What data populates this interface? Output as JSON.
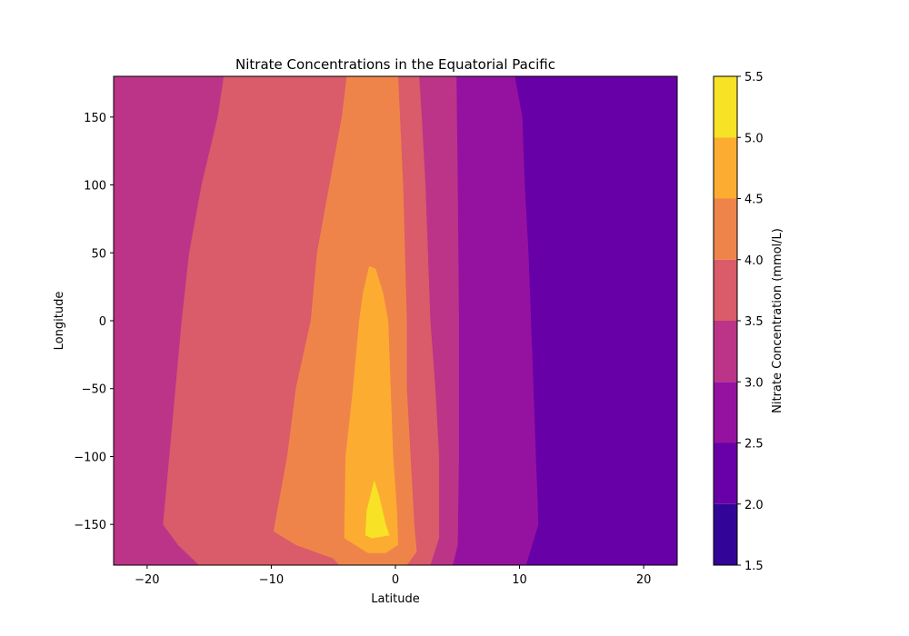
{
  "chart_data": {
    "type": "heatmap",
    "subtype": "filled-contour",
    "title": "Nitrate Concentrations in the Equatorial Pacific",
    "xlabel": "Latitude",
    "ylabel": "Longitude",
    "xlim": [
      -22.7,
      22.7
    ],
    "ylim": [
      -180,
      180
    ],
    "x_ticks": [
      -20,
      -10,
      0,
      10,
      20
    ],
    "y_ticks": [
      -150,
      -100,
      -50,
      0,
      50,
      100,
      150
    ],
    "x_tick_labels": [
      "−20",
      "−10",
      "0",
      "10",
      "20"
    ],
    "y_tick_labels": [
      "−150",
      "−100",
      "−50",
      "0",
      "50",
      "100",
      "150"
    ],
    "colormap": "plasma",
    "colorbar": {
      "label": "Nitrate Concentration (mmol/L)",
      "levels": [
        1.5,
        2.0,
        2.5,
        3.0,
        3.5,
        4.0,
        4.5,
        5.0,
        5.5
      ],
      "tick_labels": [
        "1.5",
        "2.0",
        "2.5",
        "3.0",
        "3.5",
        "4.0",
        "4.5",
        "5.0",
        "5.5"
      ],
      "colors": [
        "#330597",
        "#6800a8",
        "#9512a1",
        "#bb3488",
        "#da5b69",
        "#ef844b",
        "#fcad31",
        "#f7e225"
      ]
    },
    "grid": false,
    "legend": "none",
    "contour_bands": [
      {
        "level": "1.5-2.0",
        "polygons": [
          [
            [
              14.7,
              180
            ],
            [
              20.6,
              180
            ],
            [
              20.1,
              100
            ],
            [
              19.3,
              50
            ],
            [
              18.7,
              0
            ],
            [
              18.2,
              -10
            ],
            [
              17.6,
              -10
            ],
            [
              17.0,
              0
            ],
            [
              16.5,
              50
            ],
            [
              15.6,
              100
            ]
          ],
          [
            [
              15.2,
              -180
            ],
            [
              16.0,
              -172
            ],
            [
              18.0,
              -166
            ],
            [
              20.0,
              -166
            ],
            [
              21.5,
              -170
            ],
            [
              22.0,
              -180
            ]
          ]
        ]
      },
      {
        "level": "2.0-2.5",
        "polygons": [
          [
            [
              9.6,
              180
            ],
            [
              22.7,
              180
            ],
            [
              22.7,
              -180
            ],
            [
              10.5,
              -180
            ],
            [
              11.0,
              -165
            ],
            [
              11.5,
              -150
            ],
            [
              11.3,
              -100
            ],
            [
              11.1,
              -50
            ],
            [
              10.9,
              0
            ],
            [
              10.7,
              50
            ],
            [
              10.4,
              100
            ],
            [
              10.2,
              150
            ]
          ]
        ]
      },
      {
        "level": "2.5-3.0",
        "polygons": [
          [
            [
              4.9,
              180
            ],
            [
              9.6,
              180
            ],
            [
              10.2,
              150
            ],
            [
              10.4,
              100
            ],
            [
              10.7,
              50
            ],
            [
              10.9,
              0
            ],
            [
              11.1,
              -50
            ],
            [
              11.3,
              -100
            ],
            [
              11.5,
              -150
            ],
            [
              11.0,
              -165
            ],
            [
              10.5,
              -180
            ],
            [
              4.6,
              -180
            ],
            [
              5.0,
              -165
            ],
            [
              5.1,
              -100
            ],
            [
              5.1,
              0
            ],
            [
              5.0,
              100
            ]
          ]
        ]
      },
      {
        "level": "3.0-3.5",
        "polygons": [
          [
            [
              -22.7,
              180
            ],
            [
              -13.8,
              180
            ],
            [
              -14.3,
              150
            ],
            [
              -15.6,
              100
            ],
            [
              -16.6,
              50
            ],
            [
              -17.2,
              0
            ],
            [
              -17.7,
              -50
            ],
            [
              -18.2,
              -100
            ],
            [
              -18.7,
              -150
            ],
            [
              -17.5,
              -165
            ],
            [
              -15.8,
              -180
            ],
            [
              -22.7,
              -180
            ]
          ],
          [
            [
              1.9,
              180
            ],
            [
              4.9,
              180
            ],
            [
              5.0,
              100
            ],
            [
              5.1,
              0
            ],
            [
              5.1,
              -100
            ],
            [
              5.0,
              -165
            ],
            [
              4.6,
              -180
            ],
            [
              2.8,
              -180
            ],
            [
              3.5,
              -160
            ],
            [
              3.5,
              -100
            ],
            [
              3.2,
              -50
            ],
            [
              2.8,
              0
            ],
            [
              2.4,
              100
            ],
            [
              2.1,
              150
            ]
          ],
          [
            [
              -11.0,
              180
            ],
            [
              -8.8,
              180
            ],
            [
              -9.4,
              175
            ],
            [
              -10.5,
              175
            ]
          ]
        ]
      },
      {
        "level": "3.5-4.0",
        "polygons": [
          [
            [
              -13.8,
              180
            ],
            [
              -3.9,
              180
            ],
            [
              -4.3,
              150
            ],
            [
              -5.3,
              100
            ],
            [
              -6.3,
              50
            ],
            [
              -6.8,
              0
            ],
            [
              -8.0,
              -50
            ],
            [
              -8.7,
              -100
            ],
            [
              -9.8,
              -155
            ],
            [
              -8.0,
              -165
            ],
            [
              -5.0,
              -175
            ],
            [
              -4.5,
              -180
            ],
            [
              -15.8,
              -180
            ],
            [
              -17.5,
              -165
            ],
            [
              -18.7,
              -150
            ],
            [
              -18.2,
              -100
            ],
            [
              -17.7,
              -50
            ],
            [
              -17.2,
              0
            ],
            [
              -16.6,
              50
            ],
            [
              -15.6,
              100
            ],
            [
              -14.3,
              150
            ]
          ],
          [
            [
              0.2,
              180
            ],
            [
              1.9,
              180
            ],
            [
              2.1,
              150
            ],
            [
              2.4,
              100
            ],
            [
              2.8,
              0
            ],
            [
              3.2,
              -50
            ],
            [
              3.5,
              -100
            ],
            [
              3.5,
              -160
            ],
            [
              2.8,
              -180
            ],
            [
              0.9,
              -180
            ],
            [
              1.7,
              -170
            ],
            [
              1.5,
              -150
            ],
            [
              1.2,
              -100
            ],
            [
              0.9,
              -50
            ],
            [
              0.9,
              0
            ],
            [
              0.6,
              100
            ]
          ]
        ]
      },
      {
        "level": "4.0-4.5",
        "polygons": [
          [
            [
              -3.9,
              180
            ],
            [
              0.2,
              180
            ],
            [
              0.6,
              100
            ],
            [
              0.9,
              0
            ],
            [
              0.9,
              -50
            ],
            [
              1.2,
              -100
            ],
            [
              1.5,
              -150
            ],
            [
              1.7,
              -170
            ],
            [
              0.9,
              -180
            ],
            [
              -4.5,
              -180
            ],
            [
              -5.0,
              -175
            ],
            [
              -8.0,
              -165
            ],
            [
              -9.8,
              -155
            ],
            [
              -8.7,
              -100
            ],
            [
              -8.0,
              -50
            ],
            [
              -6.8,
              0
            ],
            [
              -6.3,
              50
            ],
            [
              -5.3,
              100
            ],
            [
              -4.3,
              150
            ]
          ]
        ]
      },
      {
        "level": "4.5-5.0",
        "polygons": [
          [
            [
              -2.1,
              40
            ],
            [
              -1.6,
              38
            ],
            [
              -1.0,
              20
            ],
            [
              -0.6,
              0
            ],
            [
              -0.4,
              -50
            ],
            [
              -0.2,
              -100
            ],
            [
              0.1,
              -140
            ],
            [
              0.2,
              -165
            ],
            [
              -0.8,
              -171
            ],
            [
              -2.2,
              -171
            ],
            [
              -4.1,
              -160
            ],
            [
              -4.0,
              -100
            ],
            [
              -3.4,
              -50
            ],
            [
              -2.9,
              0
            ],
            [
              -2.6,
              20
            ]
          ]
        ]
      },
      {
        "level": "5.0-5.5",
        "polygons": [
          [
            [
              -1.7,
              -118
            ],
            [
              -1.3,
              -130
            ],
            [
              -0.8,
              -150
            ],
            [
              -0.5,
              -158
            ],
            [
              -1.9,
              -160
            ],
            [
              -2.4,
              -158
            ],
            [
              -2.3,
              -140
            ]
          ]
        ]
      }
    ]
  }
}
